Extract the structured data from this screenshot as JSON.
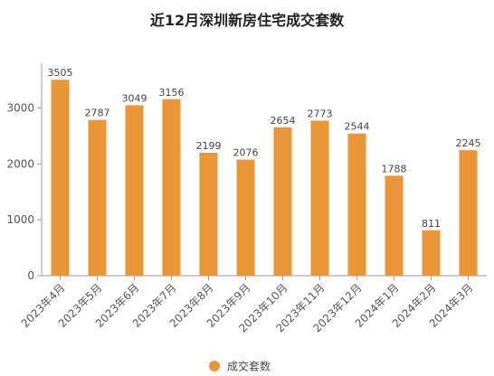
{
  "chart_data": {
    "type": "bar",
    "title": "近12月深圳新房住宅成交套数",
    "categories": [
      "2023年4月",
      "2023年5月",
      "2023年6月",
      "2023年7月",
      "2023年8月",
      "2023年9月",
      "2023年10月",
      "2023年11月",
      "2023年12月",
      "2024年1月",
      "2024年2月",
      "2024年3月"
    ],
    "series": [
      {
        "name": "成交套数",
        "color": "#EB9636",
        "values": [
          3505,
          2787,
          3049,
          3156,
          2199,
          2076,
          2654,
          2773,
          2544,
          1788,
          811,
          2245
        ]
      }
    ],
    "ylim": [
      0,
      3800
    ],
    "yticks": [
      0,
      1000,
      2000,
      3000
    ],
    "xlabel": "",
    "ylabel": "",
    "grid": false,
    "data_labels": true,
    "legend_position": "bottom-center"
  }
}
